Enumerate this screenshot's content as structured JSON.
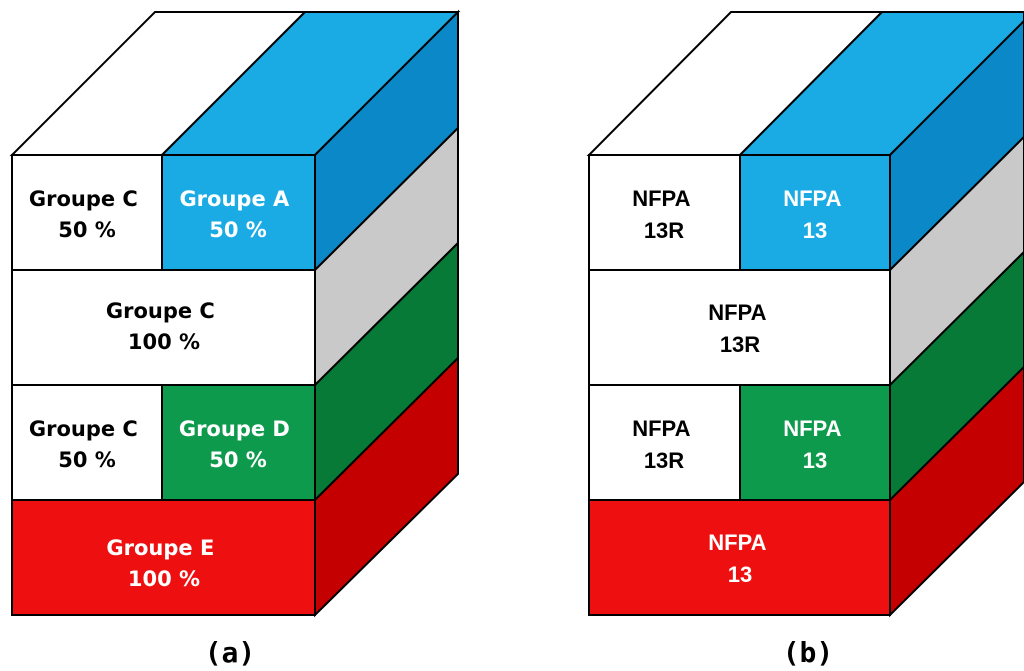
{
  "colors": {
    "blue": "#1aabe4",
    "blue_side": "#0b88c7",
    "grey": "#ffffff",
    "grey_side": "#c9c9c9",
    "green": "#0e9a4c",
    "green_side": "#067a36",
    "red": "#ee1010",
    "red_side": "#c50000",
    "white": "#ffffff",
    "outline": "#000000"
  },
  "diagram_a": {
    "caption": "(a)",
    "floor1_left": [
      "Groupe C",
      "50 %"
    ],
    "floor1_right": [
      "Groupe A",
      "50 %"
    ],
    "floor2": [
      "Groupe C",
      "100 %"
    ],
    "floor3_left": [
      "Groupe C",
      "50 %"
    ],
    "floor3_right": [
      "Groupe D",
      "50 %"
    ],
    "floor4": [
      "Groupe E",
      "100 %"
    ]
  },
  "diagram_b": {
    "caption": "(b)",
    "floor1_left": [
      "NFPA",
      "13R"
    ],
    "floor1_right": [
      "NFPA",
      "13"
    ],
    "floor2": [
      "NFPA",
      "13R"
    ],
    "floor3_left": [
      "NFPA",
      "13R"
    ],
    "floor3_right": [
      "NFPA",
      "13"
    ],
    "floor4": [
      "NFPA",
      "13"
    ]
  }
}
